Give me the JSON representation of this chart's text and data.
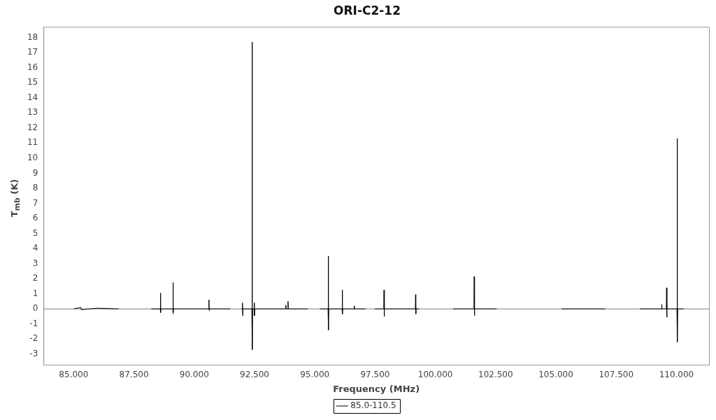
{
  "chart_data": {
    "type": "line",
    "title": "ORI-C2-12",
    "xlabel": "Frequency (MHz)",
    "ylabel": "T$_{mb}$ (K)",
    "xlim": [
      83.75,
      111.35
    ],
    "ylim": [
      -3.7,
      18.7
    ],
    "xticks": [
      {
        "value": 85,
        "label": "85.000"
      },
      {
        "value": 87.5,
        "label": "87.500"
      },
      {
        "value": 90,
        "label": "90.000"
      },
      {
        "value": 92.5,
        "label": "92.500"
      },
      {
        "value": 95,
        "label": "95.000"
      },
      {
        "value": 97.5,
        "label": "97.500"
      },
      {
        "value": 100,
        "label": "100.000"
      },
      {
        "value": 102.5,
        "label": "102.500"
      },
      {
        "value": 105,
        "label": "105.000"
      },
      {
        "value": 107.5,
        "label": "107.500"
      },
      {
        "value": 110,
        "label": "110.000"
      }
    ],
    "yticks": [
      -3,
      -2,
      -1,
      0,
      1,
      2,
      3,
      4,
      5,
      6,
      7,
      8,
      9,
      10,
      11,
      12,
      13,
      14,
      15,
      16,
      17,
      18
    ],
    "legend": "bottom",
    "ref_lines": [
      {
        "axis": "y",
        "value": 0,
        "color": "#808080"
      }
    ],
    "series": [
      {
        "name": "85.0-110.5",
        "color": "#000000",
        "x": [
          85.0,
          85.3,
          85.31,
          86.0,
          86.87,
          87.5,
          88.216,
          88.59,
          88.6,
          88.61,
          88.62,
          89.11,
          89.12,
          89.13,
          89.14,
          90.6,
          90.61,
          90.62,
          90.63,
          91.491,
          91.7,
          91.959,
          91.99,
          92.0,
          92.01,
          92.02,
          92.39,
          92.4,
          92.41,
          92.42,
          92.48,
          92.49,
          92.5,
          92.51,
          93.79,
          93.8,
          93.81,
          93.88,
          93.89,
          93.9,
          94.708,
          95.0,
          95.205,
          95.55,
          95.56,
          95.57,
          95.58,
          96.13,
          96.14,
          96.15,
          96.16,
          96.63,
          96.64,
          96.65,
          97.105,
          97.3,
          97.485,
          97.86,
          97.87,
          97.88,
          97.89,
          99.17,
          99.18,
          99.19,
          99.2,
          99.327,
          100.0,
          100.731,
          101.6,
          101.61,
          101.62,
          101.63,
          102.544,
          104.0,
          105.234,
          107.047,
          107.8,
          108.48,
          109.38,
          109.39,
          109.4,
          109.58,
          109.59,
          109.6,
          109.61,
          110.02,
          110.03,
          110.04,
          110.05,
          110.292
        ],
        "values": [
          0,
          0.1,
          -0.05,
          0.05,
          0,
          null,
          0,
          0,
          1.05,
          -0.25,
          0,
          0,
          1.75,
          -0.3,
          0,
          0,
          0.6,
          -0.1,
          0,
          0,
          null,
          0,
          0,
          0.4,
          -0.45,
          0,
          0,
          17.7,
          -2.7,
          0,
          0,
          0.4,
          -0.45,
          0,
          0,
          0.25,
          0,
          0,
          0.5,
          0,
          0,
          null,
          0,
          0,
          3.5,
          -1.4,
          0,
          0,
          1.25,
          -0.35,
          0,
          0,
          0.2,
          0,
          0,
          null,
          0,
          0,
          1.25,
          -0.5,
          0,
          0,
          0.95,
          -0.35,
          0,
          0,
          null,
          0,
          0,
          2.15,
          -0.45,
          0,
          0,
          null,
          0,
          0,
          null,
          0,
          0,
          0.3,
          0,
          0,
          1.4,
          -0.55,
          0,
          0,
          11.3,
          -2.2,
          0,
          0
        ]
      }
    ]
  }
}
